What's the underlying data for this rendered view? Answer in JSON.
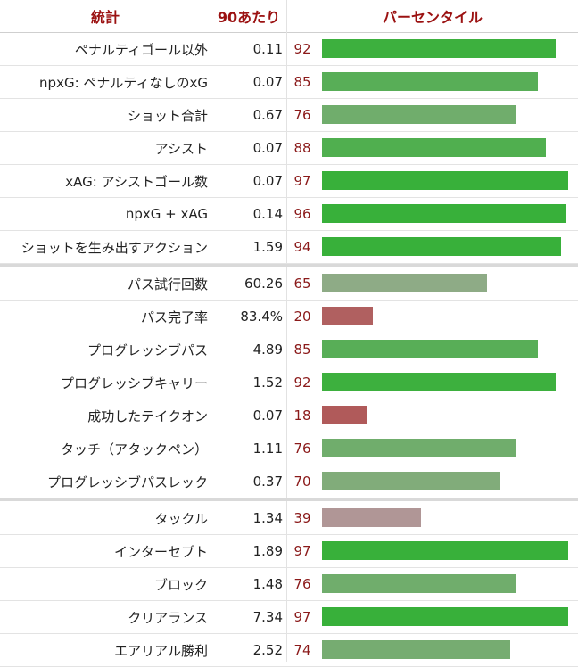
{
  "headers": {
    "stat": "統計",
    "per90": "90あたり",
    "percentile": "パーセンタイル"
  },
  "groups": [
    {
      "rows": [
        {
          "label": "ペナルティゴール以外",
          "value": "0.11",
          "percentile": 92
        },
        {
          "label": "npxG: ペナルティなしのxG",
          "value": "0.07",
          "percentile": 85
        },
        {
          "label": "ショット合計",
          "value": "0.67",
          "percentile": 76
        },
        {
          "label": "アシスト",
          "value": "0.07",
          "percentile": 88
        },
        {
          "label": "xAG: アシストゴール数",
          "value": "0.07",
          "percentile": 97
        },
        {
          "label": "npxG + xAG",
          "value": "0.14",
          "percentile": 96
        },
        {
          "label": "ショットを生み出すアクション",
          "value": "1.59",
          "percentile": 94
        }
      ]
    },
    {
      "rows": [
        {
          "label": "パス試行回数",
          "value": "60.26",
          "percentile": 65
        },
        {
          "label": "パス完了率",
          "value": "83.4%",
          "percentile": 20
        },
        {
          "label": "プログレッシブパス",
          "value": "4.89",
          "percentile": 85
        },
        {
          "label": "プログレッシブキャリー",
          "value": "1.52",
          "percentile": 92
        },
        {
          "label": "成功したテイクオン",
          "value": "0.07",
          "percentile": 18
        },
        {
          "label": "タッチ（アタックペン）",
          "value": "1.11",
          "percentile": 76
        },
        {
          "label": "プログレッシブパスレック",
          "value": "0.37",
          "percentile": 70
        }
      ]
    },
    {
      "rows": [
        {
          "label": "タックル",
          "value": "1.34",
          "percentile": 39
        },
        {
          "label": "インターセプト",
          "value": "1.89",
          "percentile": 97
        },
        {
          "label": "ブロック",
          "value": "1.48",
          "percentile": 76
        },
        {
          "label": "クリアランス",
          "value": "7.34",
          "percentile": 97
        },
        {
          "label": "エアリアル勝利",
          "value": "2.52",
          "percentile": 74
        }
      ]
    }
  ],
  "chart_data": {
    "type": "bar",
    "orientation": "horizontal",
    "categories": [
      "ペナルティゴール以外",
      "npxG: ペナルティなしのxG",
      "ショット合計",
      "アシスト",
      "xAG: アシストゴール数",
      "npxG + xAG",
      "ショットを生み出すアクション",
      "パス試行回数",
      "パス完了率",
      "プログレッシブパス",
      "プログレッシブキャリー",
      "成功したテイクオン",
      "タッチ（アタックペン）",
      "プログレッシブパスレック",
      "タックル",
      "インターセプト",
      "ブロック",
      "クリアランス",
      "エアリアル勝利"
    ],
    "values": [
      92,
      85,
      76,
      88,
      97,
      96,
      94,
      65,
      20,
      85,
      92,
      18,
      76,
      70,
      39,
      97,
      76,
      97,
      74
    ],
    "xlim": [
      0,
      100
    ],
    "grid": false
  }
}
